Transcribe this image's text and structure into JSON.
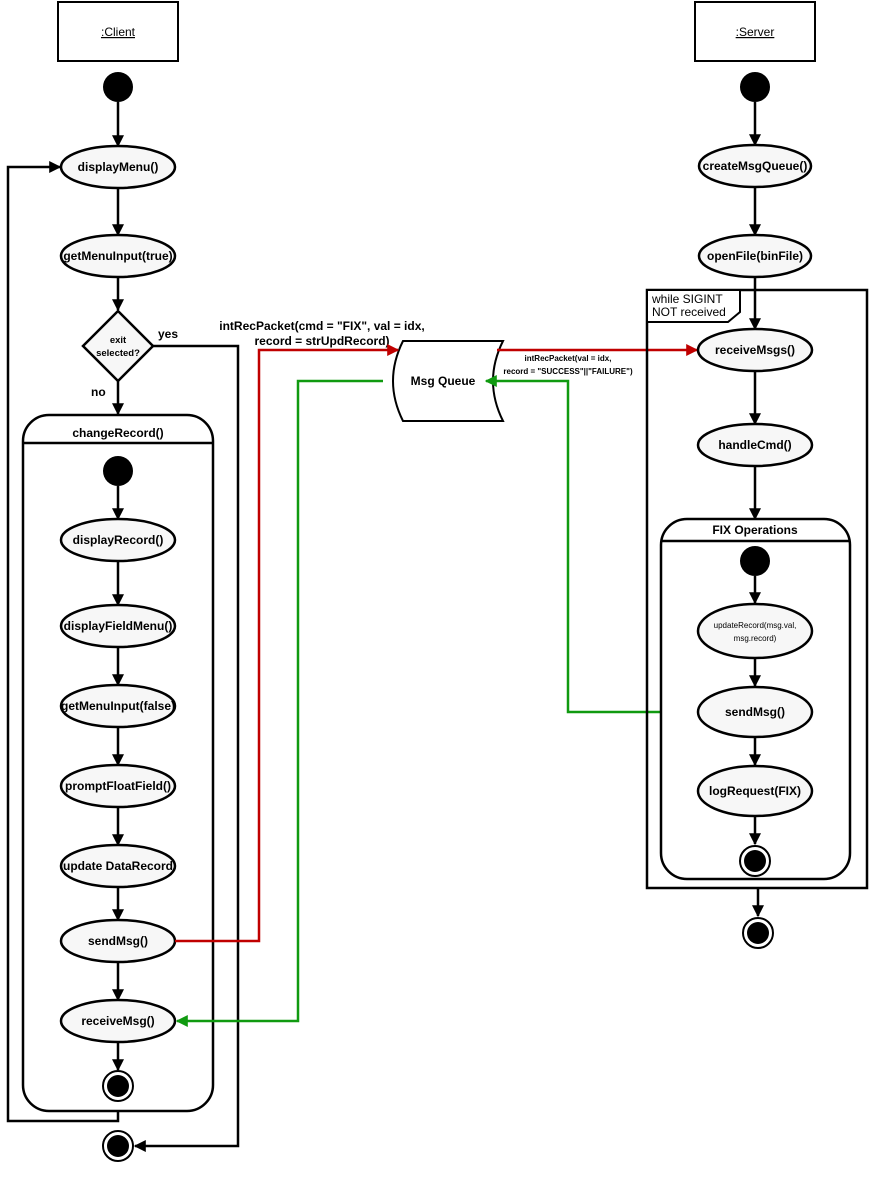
{
  "client": {
    "lane_title": ":Client",
    "display_menu": "displayMenu()",
    "get_menu_input_true": "getMenuInput(true)",
    "decision_line1": "exit",
    "decision_line2": "selected?",
    "yes_label": "yes",
    "no_label": "no",
    "change_record": {
      "title": "changeRecord()",
      "display_record": "displayRecord()",
      "display_field_menu": "displayFieldMenu()",
      "get_menu_input_false": "getMenuInput(false)",
      "prompt_float_field": "promptFloatField()",
      "update_data_record": "update DataRecord",
      "send_msg": "sendMsg()",
      "receive_msg": "receiveMsg()"
    }
  },
  "server": {
    "lane_title": ":Server",
    "create_msg_queue": "createMsgQueue()",
    "open_file": "openFile(binFile)",
    "loop_line1": "while SIGINT",
    "loop_line2": "NOT received",
    "receive_msgs": "receiveMsgs()",
    "handle_cmd": "handleCmd()",
    "fix_ops": {
      "title": "FIX Operations",
      "update_record_line1": "updateRecord(msg.val,",
      "update_record_line2": "msg.record)",
      "send_msg": "sendMsg()",
      "log_request": "logRequest(FIX)"
    }
  },
  "queue": {
    "label": "Msg Queue",
    "request_line1": "intRecPacket(cmd = \"FIX\", val = idx,",
    "request_line2": "record = strUpdRecord)",
    "response_line1": "intRecPacket(val  = idx,",
    "response_line2": "record = \"SUCCESS\"||\"FAILURE\")"
  },
  "colors": {
    "request_arrow": "#c00000",
    "response_arrow": "#109a10",
    "node_fill": "#f7f7f7"
  }
}
